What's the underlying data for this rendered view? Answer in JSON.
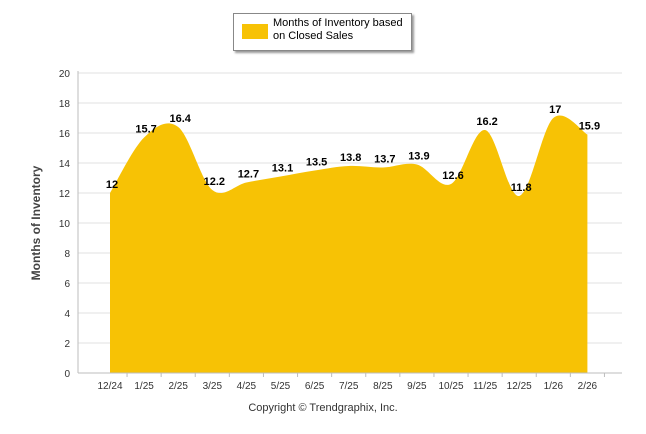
{
  "chart_data": {
    "type": "area",
    "title": "",
    "ylabel": "Months of Inventory",
    "xlabel": "",
    "categories": [
      "12/24",
      "1/25",
      "2/25",
      "3/25",
      "4/25",
      "5/25",
      "6/25",
      "7/25",
      "8/25",
      "9/25",
      "10/25",
      "11/25",
      "12/25",
      "1/26",
      "2/26"
    ],
    "series": [
      {
        "name": "Months of Inventory based on Closed Sales",
        "values": [
          12,
          15.7,
          16.4,
          12.2,
          12.7,
          13.1,
          13.5,
          13.8,
          13.7,
          13.9,
          12.6,
          16.2,
          11.8,
          17,
          15.9
        ]
      }
    ],
    "ylim": [
      0,
      20
    ],
    "yticks": [
      0,
      2,
      4,
      6,
      8,
      10,
      12,
      14,
      16,
      18,
      20
    ],
    "grid": true,
    "legend_position": "top-center",
    "data_labels": true
  },
  "colors": {
    "fill": "#f7c205",
    "grid": "#e2e2e2",
    "axis": "#bdbdbd"
  },
  "legend": {
    "label": "Months of Inventory based on Closed Sales"
  },
  "footer": {
    "copyright": "Copyright © Trendgraphix, Inc."
  }
}
